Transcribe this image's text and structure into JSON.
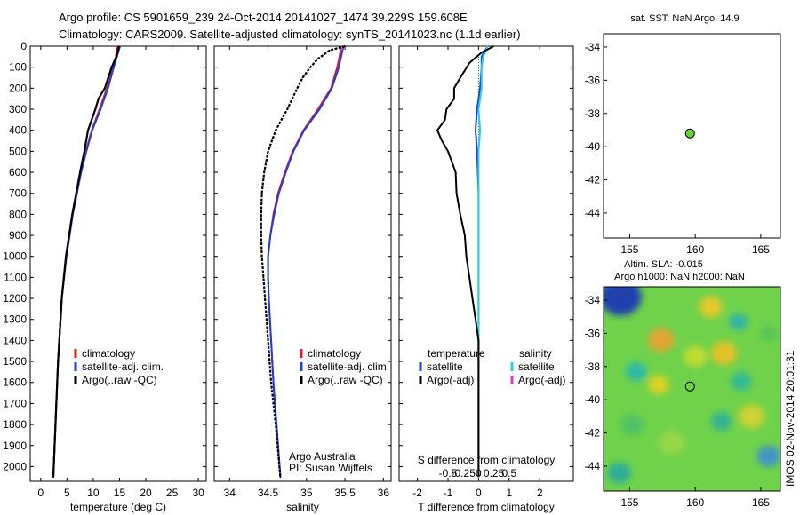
{
  "header": {
    "line1": "Argo profile: CS 5901659_239 24-Oct-2014 20141027_1474 39.229S 159.608E",
    "line2": "Climatology: CARS2009. Satellite-adjusted climatology: synTS_20141023.nc (1.1d earlier)"
  },
  "colors": {
    "climatology": "#e41a1c",
    "satellite": "#1f3fd8",
    "argo": "#000000",
    "sat_salinity": "#22d3e6",
    "argo_adj_salinity": "#d63bd6"
  },
  "chart_data": [
    {
      "id": "temperature",
      "type": "line",
      "xlabel": "temperature (deg C)",
      "ylabel": "",
      "xlim": [
        -2,
        31.5
      ],
      "ylim": [
        2070,
        0
      ],
      "xticks": [
        0,
        5,
        10,
        15,
        20,
        25,
        30
      ],
      "yticks": [
        0,
        100,
        200,
        300,
        400,
        500,
        600,
        700,
        800,
        900,
        1000,
        1100,
        1200,
        1300,
        1400,
        1500,
        1600,
        1700,
        1800,
        1900,
        2000
      ],
      "legend": [
        "climatology",
        "satellite-adj. clim.",
        "Argo(..raw -QC)"
      ],
      "series": [
        {
          "name": "climatology",
          "depth": [
            0,
            50,
            100,
            200,
            300,
            400,
            500,
            600,
            800,
            1000,
            1200,
            1500,
            1800,
            2050
          ],
          "values": [
            14.6,
            14.3,
            13.8,
            12.6,
            11.2,
            9.7,
            8.6,
            7.6,
            6.0,
            4.8,
            4.0,
            3.3,
            2.8,
            2.4
          ]
        },
        {
          "name": "satellite-adj. clim.",
          "depth": [
            0,
            50,
            100,
            200,
            300,
            400,
            500,
            600,
            800,
            1000,
            1200,
            1500,
            1800,
            2050
          ],
          "values": [
            15.1,
            14.5,
            13.9,
            12.8,
            11.4,
            9.8,
            8.7,
            7.7,
            6.1,
            4.9,
            4.0,
            3.3,
            2.8,
            2.4
          ]
        },
        {
          "name": "Argo(..raw -QC)",
          "depth": [
            0,
            50,
            100,
            200,
            250,
            300,
            400,
            500,
            600,
            800,
            1000,
            1200,
            1500,
            1800,
            2050
          ],
          "values": [
            14.9,
            14.4,
            13.5,
            12.2,
            11.0,
            10.4,
            9.0,
            8.3,
            7.5,
            6.0,
            4.8,
            4.0,
            3.3,
            2.8,
            2.4
          ]
        }
      ]
    },
    {
      "id": "salinity",
      "type": "line",
      "xlabel": "salinity",
      "ylabel": "",
      "xlim": [
        33.8,
        36.1
      ],
      "ylim": [
        2070,
        0
      ],
      "xticks": [
        34,
        34.5,
        35,
        35.5,
        36
      ],
      "legend": [
        "climatology",
        "satellite-adj. clim.",
        "Argo(..raw -QC)"
      ],
      "annotations": [
        "Argo Australia",
        "PI: Susan Wijffels"
      ],
      "series": [
        {
          "name": "climatology",
          "depth": [
            0,
            50,
            100,
            200,
            300,
            400,
            500,
            600,
            700,
            800,
            900,
            1000,
            1100,
            1200,
            1400,
            1600,
            1800,
            2050
          ],
          "values": [
            35.45,
            35.43,
            35.4,
            35.32,
            35.15,
            34.96,
            34.82,
            34.72,
            34.63,
            34.57,
            34.53,
            34.5,
            34.5,
            34.51,
            34.54,
            34.57,
            34.61,
            34.66
          ]
        },
        {
          "name": "satellite-adj. clim.",
          "depth": [
            0,
            50,
            100,
            200,
            300,
            400,
            500,
            600,
            700,
            800,
            900,
            1000,
            1100,
            1200,
            1400,
            1600,
            1800,
            2050
          ],
          "values": [
            35.48,
            35.45,
            35.42,
            35.33,
            35.17,
            34.97,
            34.83,
            34.73,
            34.64,
            34.58,
            34.53,
            34.5,
            34.5,
            34.51,
            34.54,
            34.57,
            34.61,
            34.66
          ]
        },
        {
          "name": "Argo(..raw -QC)",
          "depth": [
            0,
            20,
            60,
            100,
            150,
            200,
            300,
            400,
            500,
            600,
            700,
            800,
            900,
            1000,
            1100,
            1200,
            1400,
            1600,
            1800,
            2050
          ],
          "values": [
            35.5,
            35.3,
            35.15,
            35.05,
            34.95,
            34.88,
            34.75,
            34.6,
            34.5,
            34.45,
            34.42,
            34.41,
            34.41,
            34.42,
            34.44,
            34.46,
            34.5,
            34.54,
            34.6,
            34.66
          ]
        }
      ]
    },
    {
      "id": "difference",
      "type": "line",
      "xlabel": "T difference from climatology",
      "xlabel2": "S difference from climatology",
      "xlim": [
        -2.6,
        3.1
      ],
      "ylim": [
        2070,
        0
      ],
      "xticks": [
        -2,
        -1,
        0,
        1,
        2
      ],
      "xticks_top": [
        "-0.5",
        "-0.25",
        "0",
        "0.25",
        "0.5"
      ],
      "legend_headers": [
        "temperature",
        "salinity"
      ],
      "legend": [
        "satellite",
        "Argo(-adj)",
        "satellite",
        "Argo(-adj)"
      ],
      "series": [
        {
          "name": "T satellite",
          "depth": [
            0,
            50,
            100,
            200,
            300,
            400,
            500,
            700,
            1000,
            1500,
            2050
          ],
          "values": [
            0.3,
            0.1,
            0.1,
            0.05,
            -0.05,
            -0.1,
            -0.05,
            0.0,
            0.0,
            0.0,
            0.0
          ]
        },
        {
          "name": "S satellite",
          "depth": [
            0,
            50,
            100,
            200,
            300,
            400,
            500,
            700,
            1000,
            1500,
            2050
          ],
          "values": [
            0.3,
            0.15,
            0.1,
            0.1,
            0.0,
            0.05,
            0.0,
            0.0,
            0.0,
            0.0,
            0.0
          ]
        },
        {
          "name": "T Argo(-adj)",
          "depth": [
            0,
            30,
            80,
            150,
            200,
            250,
            300,
            350,
            400,
            450,
            500,
            600,
            700,
            800,
            900,
            1000,
            1100,
            1200,
            1300,
            1400,
            1500,
            2050
          ],
          "values": [
            0.5,
            0.1,
            -0.3,
            -0.6,
            -0.8,
            -0.8,
            -1.05,
            -1.1,
            -1.35,
            -1.2,
            -1.0,
            -0.75,
            -0.72,
            -0.6,
            -0.45,
            -0.4,
            -0.3,
            -0.2,
            -0.1,
            0.0,
            0.0,
            0.0
          ]
        }
      ]
    },
    {
      "id": "sst-map",
      "type": "scatter",
      "title": "sat. SST: NaN Argo: 14.9",
      "xlim": [
        153,
        166.5
      ],
      "ylim": [
        -45.5,
        -33.2
      ],
      "xticks": [
        155,
        160,
        165
      ],
      "yticks": [
        -34,
        -36,
        -38,
        -40,
        -42,
        -44
      ],
      "point": {
        "x": 159.6,
        "y": -39.2
      }
    },
    {
      "id": "sla-map",
      "type": "heatmap",
      "title_line1": "Altim. SLA: -0.015",
      "title_line2": "Argo h1000: NaN h2000: NaN",
      "xlim": [
        153,
        166.5
      ],
      "ylim": [
        -45.5,
        -33.2
      ],
      "xticks": [
        155,
        160,
        165
      ],
      "yticks": [
        -34,
        -36,
        -38,
        -40,
        -42,
        -44
      ],
      "point": {
        "x": 159.6,
        "y": -39.2
      },
      "blobs": [
        {
          "x": 154.3,
          "y": -33.8,
          "r": 1.6,
          "c": "#1430b8"
        },
        {
          "x": 157.4,
          "y": -36.4,
          "r": 1.0,
          "c": "#f0a030"
        },
        {
          "x": 155.5,
          "y": -38.3,
          "r": 0.8,
          "c": "#2ab6b0"
        },
        {
          "x": 157.2,
          "y": -39.1,
          "r": 0.8,
          "c": "#e8d020"
        },
        {
          "x": 161.2,
          "y": -34.4,
          "r": 0.9,
          "c": "#f2c828"
        },
        {
          "x": 162.2,
          "y": -37.2,
          "r": 1.0,
          "c": "#f0c024"
        },
        {
          "x": 160.0,
          "y": -37.4,
          "r": 0.9,
          "c": "#c8dc30"
        },
        {
          "x": 163.3,
          "y": -35.3,
          "r": 0.7,
          "c": "#2ab0b0"
        },
        {
          "x": 163.5,
          "y": -38.9,
          "r": 0.8,
          "c": "#2fb89a"
        },
        {
          "x": 162.0,
          "y": -41.3,
          "r": 0.8,
          "c": "#2fb09a"
        },
        {
          "x": 164.3,
          "y": -41.0,
          "r": 1.0,
          "c": "#d8d030"
        },
        {
          "x": 158.2,
          "y": -42.6,
          "r": 1.0,
          "c": "#9ad848"
        },
        {
          "x": 154.2,
          "y": -44.4,
          "r": 0.9,
          "c": "#2aa8a0"
        },
        {
          "x": 165.6,
          "y": -43.4,
          "r": 0.9,
          "c": "#3a8fd0"
        },
        {
          "x": 155.2,
          "y": -41.5,
          "r": 0.9,
          "c": "#4cc06a"
        },
        {
          "x": 165.6,
          "y": -36.0,
          "r": 0.7,
          "c": "#58c458"
        }
      ]
    }
  ],
  "side_label": "IMOS 02-Nov-2014 20:01:31"
}
